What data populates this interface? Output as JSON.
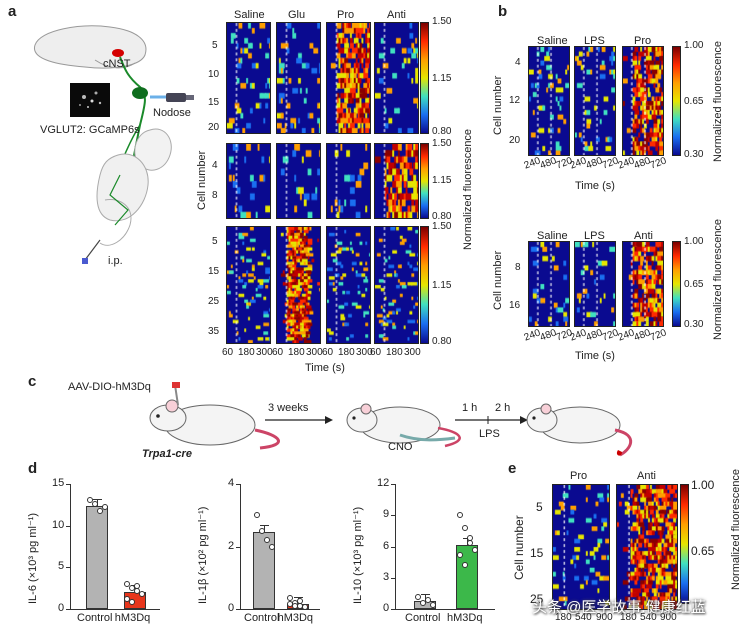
{
  "panels": {
    "a": "a",
    "b": "b",
    "c": "c",
    "d": "d",
    "e": "e"
  },
  "panel_a": {
    "illustration": {
      "cnst": "cNST",
      "nodose": "Nodose",
      "vglut2": "VGLUT2: GCaMP6s",
      "ip": "i.p."
    },
    "columns": [
      "Saline",
      "Glu",
      "Pro",
      "Anti"
    ],
    "cell_number_label": "Cell number",
    "time_label": "Time (s)",
    "fluor_label": "Normalized fluorescence",
    "time_ticks": [
      "60",
      "180",
      "300"
    ],
    "rows": [
      {
        "y_ticks": [
          "5",
          "10",
          "15",
          "20"
        ],
        "cbar": [
          "1.50",
          "1.15",
          "0.80"
        ]
      },
      {
        "y_ticks": [
          "4",
          "8"
        ],
        "cbar": [
          "1.50",
          "1.15",
          "0.80"
        ]
      },
      {
        "y_ticks": [
          "5",
          "15",
          "25",
          "35"
        ],
        "cbar": [
          "1.50",
          "1.15",
          "0.80"
        ]
      }
    ]
  },
  "panel_b": {
    "cell_number_label": "Cell number",
    "time_label": "Time (s)",
    "fluor_label": "Normalized fluorescence",
    "time_ticks": [
      "240",
      "480",
      "720"
    ],
    "top": {
      "columns": [
        "Saline",
        "LPS",
        "Pro"
      ],
      "y_ticks": [
        "4",
        "12",
        "20"
      ],
      "cbar": [
        "1.00",
        "0.65",
        "0.30"
      ]
    },
    "bottom": {
      "columns": [
        "Saline",
        "LPS",
        "Anti"
      ],
      "y_ticks": [
        "8",
        "16"
      ],
      "cbar": [
        "1.00",
        "0.65",
        "0.30"
      ]
    }
  },
  "panel_c": {
    "virus": "AAV-DIO-hM3Dq",
    "mouse_line": "Trpa1-cre",
    "wait": "3 weeks",
    "cno": "CNO",
    "t1": "1 h",
    "t2": "2 h",
    "lps": "LPS"
  },
  "panel_d": {
    "charts": [
      {
        "ylabel": "IL-6 (×10³ pg ml⁻¹)",
        "y_ticks": [
          "15",
          "10",
          "5",
          "0"
        ]
      },
      {
        "ylabel": "IL-1β (×10² pg ml⁻¹)",
        "y_ticks": [
          "4",
          "2",
          "0"
        ]
      },
      {
        "ylabel": "IL-10 (×10³ pg ml⁻¹)",
        "y_ticks": [
          "12",
          "9",
          "6",
          "3",
          "0"
        ]
      }
    ],
    "colors": {
      "control": "#b3b3b3",
      "il6": "#e8361c",
      "il1b": "#e8361c",
      "il10": "#3cb84a"
    }
  },
  "chart_data": [
    {
      "type": "bar",
      "categories": [
        "Control",
        "hM3Dq"
      ],
      "values": [
        12.4,
        2.1
      ],
      "points": [
        [
          13.1,
          12.6,
          11.8,
          12.3
        ],
        [
          3.0,
          2.5,
          2.2,
          1.8,
          1.2,
          0.9,
          2.8
        ]
      ],
      "ylabel": "IL-6 (×10³ pg ml⁻¹)",
      "ylim": [
        0,
        15
      ]
    },
    {
      "type": "bar",
      "categories": [
        "Control",
        "hM3Dq"
      ],
      "values": [
        2.45,
        0.15
      ],
      "points": [
        [
          3.0,
          2.5,
          2.2,
          2.0
        ],
        [
          0.35,
          0.2,
          0.1,
          0.05,
          0.15,
          0.1,
          0.25
        ]
      ],
      "ylabel": "IL-1β (×10² pg ml⁻¹)",
      "ylim": [
        0,
        4
      ]
    },
    {
      "type": "bar",
      "categories": [
        "Control",
        "hM3Dq"
      ],
      "values": [
        0.8,
        6.1
      ],
      "points": [
        [
          1.2,
          0.6,
          0.9,
          0.4
        ],
        [
          9.0,
          7.8,
          6.8,
          5.7,
          5.2,
          4.2,
          6.3
        ]
      ],
      "ylabel": "IL-10 (×10³ pg ml⁻¹)",
      "ylim": [
        0,
        12
      ]
    }
  ],
  "panel_e": {
    "columns": [
      "Pro",
      "Anti"
    ],
    "cell_number_label": "Cell number",
    "fluor_label": "Normalized fluorescence",
    "y_ticks": [
      "5",
      "15",
      "25"
    ],
    "x_ticks": [
      "180",
      "540",
      "900",
      "180",
      "540",
      "900"
    ],
    "cbar": [
      "1.00",
      "0.65"
    ]
  },
  "watermark": "头条 @医学故事.健康红蓝"
}
